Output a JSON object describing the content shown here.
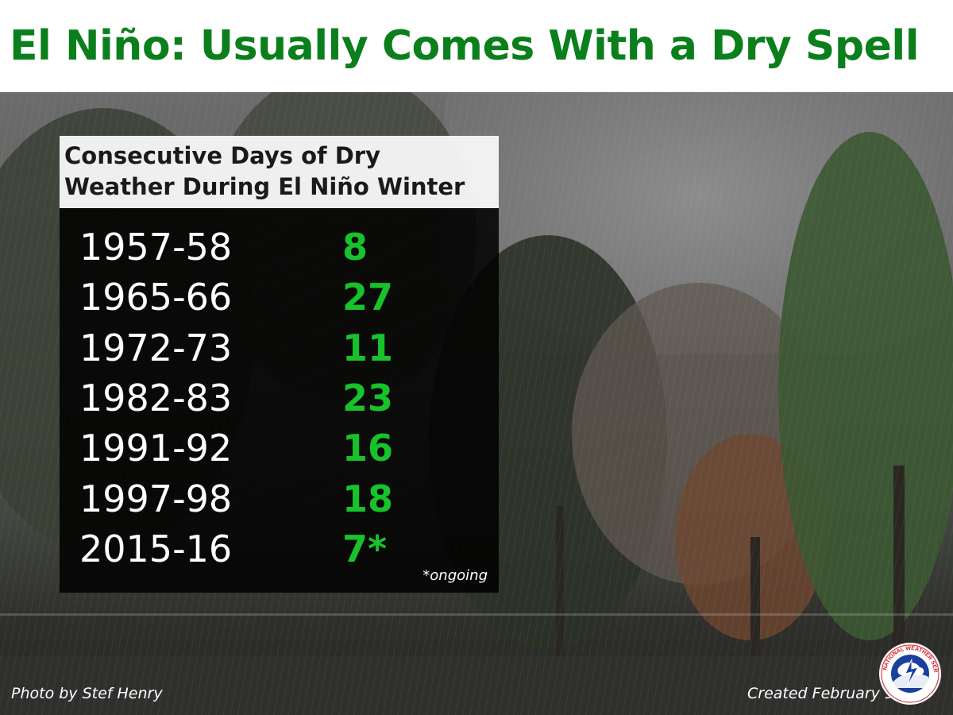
{
  "title": "El Niño: Usually Comes With a Dry Spell",
  "photo_credit": "Photo by Stef Henry",
  "created": "Created February 9",
  "logo_text": "NATIONAL WEATHER SERVICE",
  "colors": {
    "title": "#0b7f1c",
    "value": "#17c22b",
    "panel": "#000000"
  },
  "chart_data": {
    "type": "table",
    "title": "Consecutive Days of Dry\nWeather During El Niño Winter",
    "rows": [
      {
        "year": "1957-58",
        "value": "8"
      },
      {
        "year": "1965-66",
        "value": "27"
      },
      {
        "year": "1972-73",
        "value": "11"
      },
      {
        "year": "1982-83",
        "value": "23"
      },
      {
        "year": "1991-92",
        "value": "16"
      },
      {
        "year": "1997-98",
        "value": "18"
      },
      {
        "year": "2015-16",
        "value": "7*"
      }
    ],
    "footnote": "*ongoing"
  }
}
